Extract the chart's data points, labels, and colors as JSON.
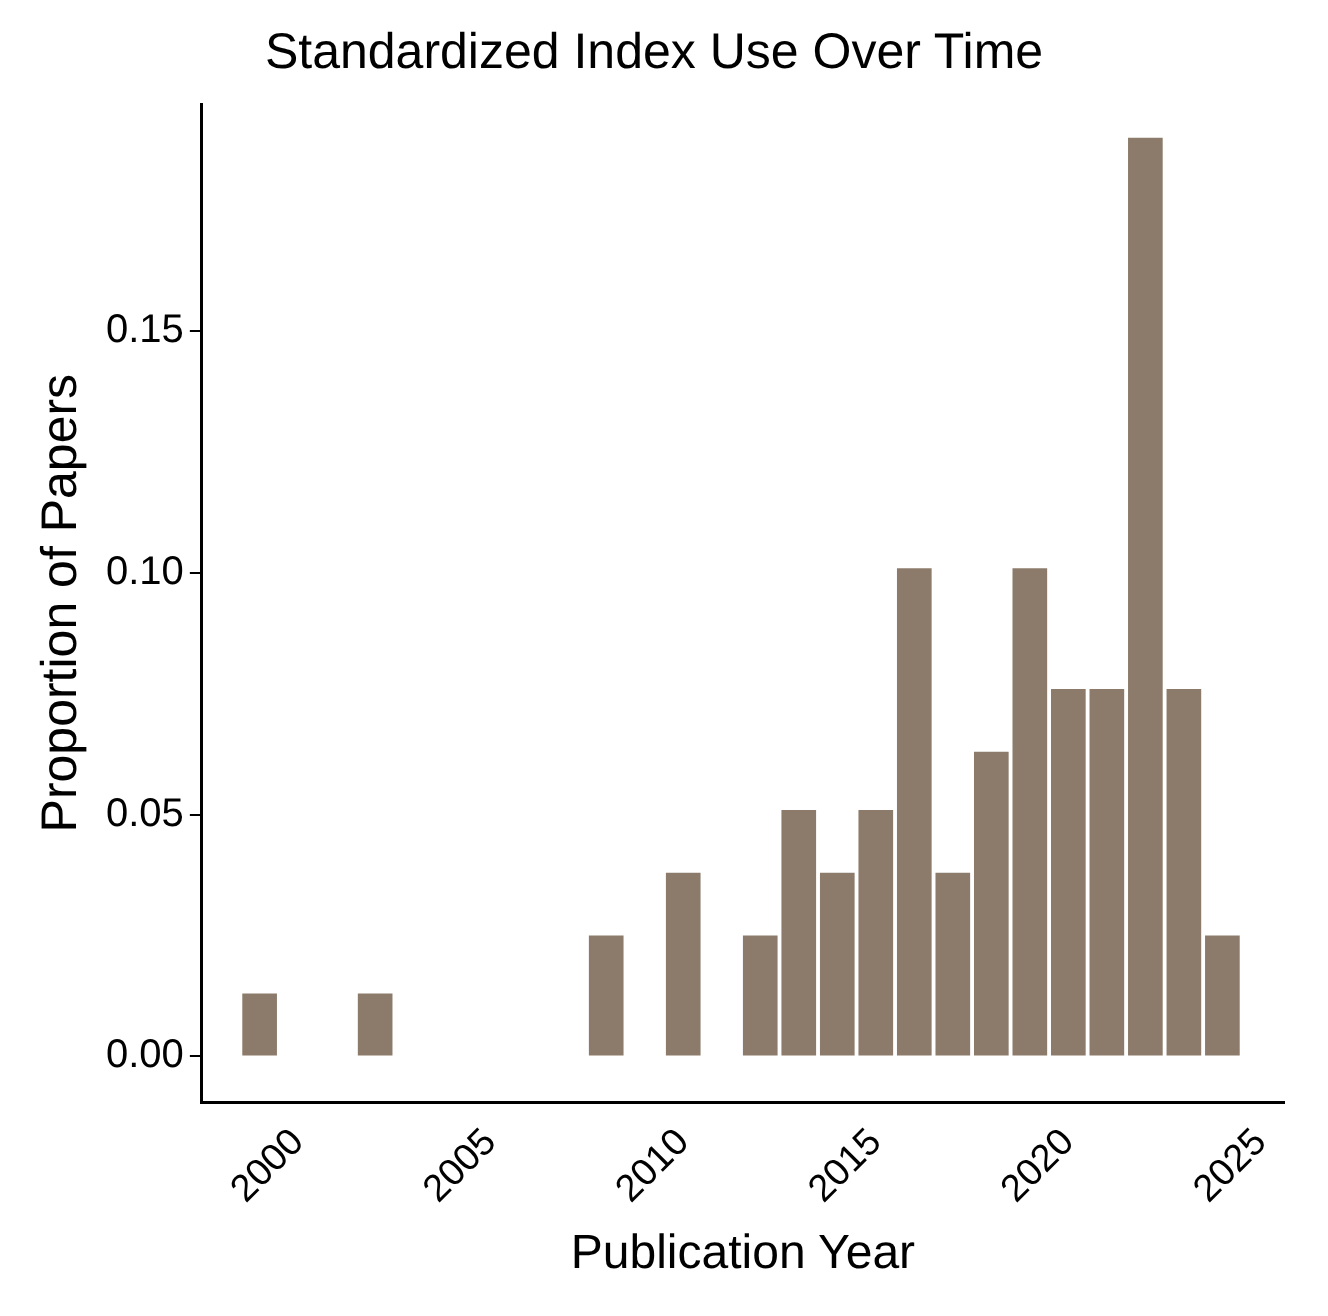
{
  "chart_data": {
    "type": "bar",
    "title": "Standardized Index Use Over Time",
    "xlabel": "Publication Year",
    "ylabel": "Proportion of Papers",
    "x": [
      1999,
      2002,
      2008,
      2010,
      2012,
      2013,
      2014,
      2015,
      2016,
      2017,
      2018,
      2019,
      2020,
      2021,
      2022,
      2023,
      2024
    ],
    "values": [
      0.013,
      0.013,
      0.025,
      0.038,
      0.025,
      0.051,
      0.038,
      0.051,
      0.101,
      0.038,
      0.063,
      0.101,
      0.076,
      0.076,
      0.19,
      0.076,
      0.025
    ],
    "color": "#8c7b6b",
    "xlim": [
      1997.5,
      2025.6
    ],
    "xticks": [
      2000,
      2005,
      2010,
      2015,
      2020,
      2025
    ],
    "ylim": [
      -0.0095,
      0.197
    ],
    "yticks": [
      {
        "value": 0,
        "label": "0.00"
      },
      {
        "value": 0.05,
        "label": "0.05"
      },
      {
        "value": 0.1,
        "label": "0.10"
      },
      {
        "value": 0.15,
        "label": "0.15"
      }
    ]
  }
}
